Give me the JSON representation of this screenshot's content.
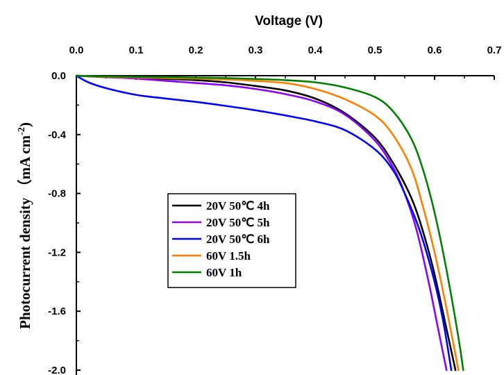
{
  "chart_data": {
    "type": "line",
    "xlabel": "Voltage (V)",
    "ylabel": "Photocurrent density （mA cm",
    "ylabel_sup": "-2",
    "ylabel_close": ")",
    "xlim": [
      0.0,
      0.7
    ],
    "ylim": [
      -2.0,
      0.0
    ],
    "x_ticks": [
      "0.0",
      "0.1",
      "0.2",
      "0.3",
      "0.4",
      "0.5",
      "0.6",
      "0.7"
    ],
    "y_ticks": [
      "0.0",
      "-0.4",
      "-0.8",
      "-1.2",
      "-1.6",
      "-2.0"
    ],
    "x_axis_position": "top",
    "legend_position": "center-left",
    "grid": false,
    "series": [
      {
        "name": "20V 50℃ 4h",
        "color": "#000000",
        "points": [
          [
            0.0,
            0.0
          ],
          [
            0.05,
            -0.01
          ],
          [
            0.1,
            -0.015
          ],
          [
            0.15,
            -0.022
          ],
          [
            0.2,
            -0.03
          ],
          [
            0.25,
            -0.045
          ],
          [
            0.3,
            -0.07
          ],
          [
            0.35,
            -0.1
          ],
          [
            0.4,
            -0.155
          ],
          [
            0.45,
            -0.255
          ],
          [
            0.5,
            -0.42
          ],
          [
            0.53,
            -0.59
          ],
          [
            0.56,
            -0.82
          ],
          [
            0.58,
            -1.05
          ],
          [
            0.6,
            -1.35
          ],
          [
            0.62,
            -1.72
          ],
          [
            0.635,
            -2.0
          ]
        ]
      },
      {
        "name": "20V 50℃ 5h",
        "color": "#8b00ff",
        "points": [
          [
            0.0,
            0.0
          ],
          [
            0.05,
            -0.01
          ],
          [
            0.1,
            -0.02
          ],
          [
            0.15,
            -0.035
          ],
          [
            0.2,
            -0.05
          ],
          [
            0.25,
            -0.065
          ],
          [
            0.3,
            -0.09
          ],
          [
            0.35,
            -0.125
          ],
          [
            0.4,
            -0.175
          ],
          [
            0.45,
            -0.265
          ],
          [
            0.5,
            -0.44
          ],
          [
            0.53,
            -0.62
          ],
          [
            0.55,
            -0.8
          ],
          [
            0.57,
            -1.05
          ],
          [
            0.59,
            -1.4
          ],
          [
            0.605,
            -1.7
          ],
          [
            0.62,
            -2.0
          ]
        ]
      },
      {
        "name": "20V 50℃ 6h",
        "color": "#0000ff",
        "points": [
          [
            0.0,
            0.0
          ],
          [
            0.02,
            -0.045
          ],
          [
            0.05,
            -0.085
          ],
          [
            0.1,
            -0.13
          ],
          [
            0.15,
            -0.155
          ],
          [
            0.2,
            -0.178
          ],
          [
            0.25,
            -0.205
          ],
          [
            0.3,
            -0.235
          ],
          [
            0.35,
            -0.27
          ],
          [
            0.4,
            -0.31
          ],
          [
            0.45,
            -0.37
          ],
          [
            0.5,
            -0.5
          ],
          [
            0.53,
            -0.64
          ],
          [
            0.55,
            -0.8
          ],
          [
            0.575,
            -1.05
          ],
          [
            0.6,
            -1.4
          ],
          [
            0.615,
            -1.68
          ],
          [
            0.628,
            -2.0
          ]
        ]
      },
      {
        "name": "60V 1.5h",
        "color": "#ff8000",
        "points": [
          [
            0.0,
            0.0
          ],
          [
            0.05,
            -0.008
          ],
          [
            0.1,
            -0.012
          ],
          [
            0.15,
            -0.016
          ],
          [
            0.2,
            -0.02
          ],
          [
            0.25,
            -0.025
          ],
          [
            0.3,
            -0.035
          ],
          [
            0.35,
            -0.05
          ],
          [
            0.4,
            -0.09
          ],
          [
            0.45,
            -0.16
          ],
          [
            0.5,
            -0.27
          ],
          [
            0.53,
            -0.4
          ],
          [
            0.56,
            -0.62
          ],
          [
            0.58,
            -0.88
          ],
          [
            0.6,
            -1.2
          ],
          [
            0.62,
            -1.58
          ],
          [
            0.64,
            -2.0
          ]
        ]
      },
      {
        "name": "60V 1h",
        "color": "#008000",
        "points": [
          [
            0.0,
            0.0
          ],
          [
            0.05,
            -0.005
          ],
          [
            0.1,
            -0.008
          ],
          [
            0.15,
            -0.01
          ],
          [
            0.2,
            -0.013
          ],
          [
            0.25,
            -0.016
          ],
          [
            0.3,
            -0.022
          ],
          [
            0.35,
            -0.03
          ],
          [
            0.4,
            -0.045
          ],
          [
            0.45,
            -0.08
          ],
          [
            0.5,
            -0.145
          ],
          [
            0.53,
            -0.24
          ],
          [
            0.56,
            -0.42
          ],
          [
            0.58,
            -0.63
          ],
          [
            0.6,
            -0.93
          ],
          [
            0.62,
            -1.32
          ],
          [
            0.64,
            -1.78
          ],
          [
            0.648,
            -2.0
          ]
        ]
      }
    ]
  }
}
